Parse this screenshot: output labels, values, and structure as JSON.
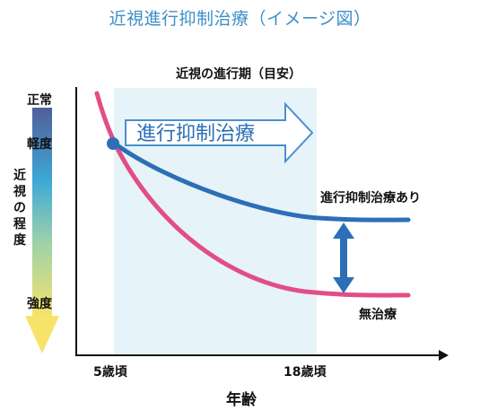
{
  "title": "近視進行抑制治療（イメージ図）",
  "subtitle": "近視の進行期（目安）",
  "y_axis": {
    "top": "正常",
    "mild": "軽度",
    "label": "近視の程度",
    "bottom": "強度"
  },
  "band_label": "進行抑制治療",
  "curves": {
    "treated": "進行抑制治療あり",
    "untreated": "無治療"
  },
  "x_axis": {
    "tick_start": "5歳頃",
    "tick_end": "18歳頃",
    "label": "年齢"
  },
  "colors": {
    "title": "#3d8fc6",
    "treated_curve": "#2c6fb6",
    "untreated_curve": "#e34d86",
    "band": "#e6f3f8",
    "gradient_top": "#4f5f9a",
    "gradient_mid": "#3ea9d6",
    "gradient_bottom": "#f7e36a"
  }
}
